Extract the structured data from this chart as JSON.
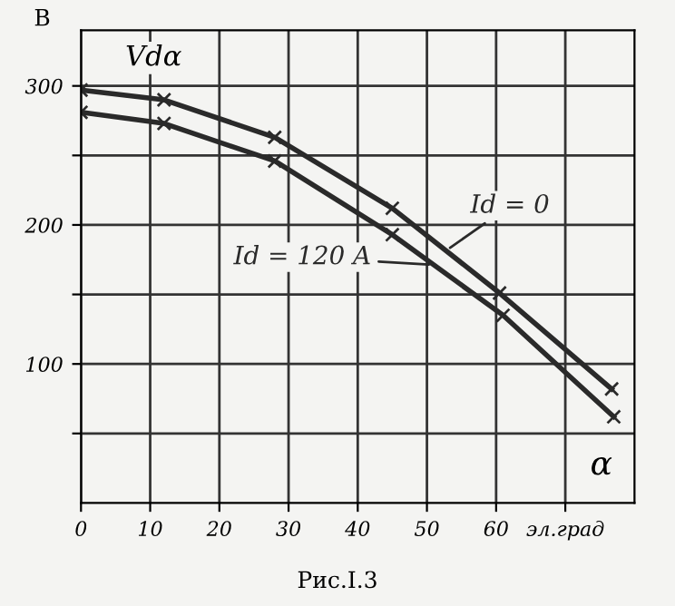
{
  "chart_data": {
    "type": "line",
    "ylabel": "В",
    "annotations": [
      "Vdα",
      "α",
      "Рис.I.3"
    ],
    "series": [
      {
        "name": "Id = 0",
        "color": "#2a2a2a",
        "x": [
          0,
          12,
          28,
          45,
          60.5,
          76.7
        ],
        "values": [
          297,
          290,
          263,
          212,
          151,
          82
        ]
      },
      {
        "name": "Id = 120 A",
        "color": "#2a2a2a",
        "x": [
          0,
          12,
          28,
          45,
          61,
          77
        ],
        "values": [
          281,
          273,
          246,
          193,
          135,
          62
        ]
      }
    ],
    "xlim": [
      0,
      80
    ],
    "ylim": [
      0,
      340
    ],
    "xticks": [
      0,
      10,
      20,
      30,
      40,
      50,
      60,
      {
        "value": 70,
        "label": "эл.град"
      }
    ],
    "yticks": [
      {
        "value": 50,
        "label": null
      },
      100,
      {
        "value": 150,
        "label": null
      },
      200,
      {
        "value": 250,
        "label": null
      },
      300
    ],
    "grid": true,
    "marker": "cross",
    "line_style": "solid"
  }
}
